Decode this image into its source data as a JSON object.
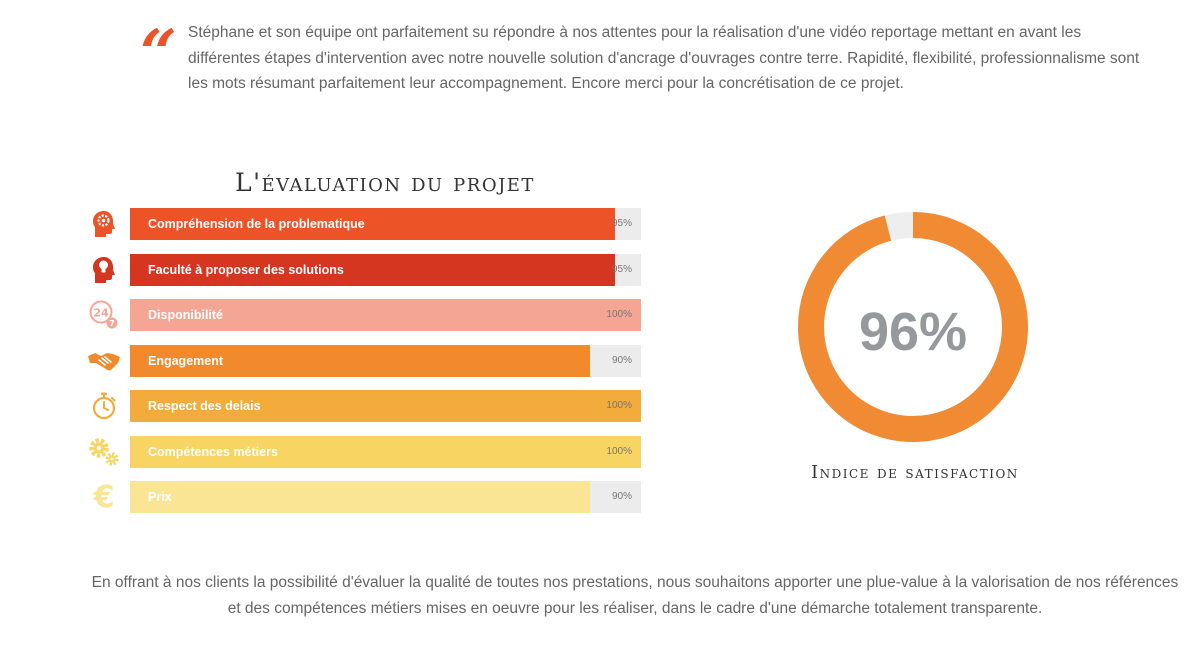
{
  "testimonial": {
    "quote_glyph": "\"",
    "text": "Stéphane et son équipe ont parfaitement su répondre à nos attentes pour la réalisation d'une vidéo reportage mettant en avant les différentes étapes d'intervention avec notre nouvelle solution d'ancrage d'ouvrages contre terre. Rapidité, flexibilité, professionnalisme sont les mots résumant parfaitement leur accompagnement. Encore merci pour la concrétisation de ce projet."
  },
  "chart_data": [
    {
      "type": "bar",
      "orientation": "horizontal",
      "title": "L'évaluation du projet",
      "xlim": [
        0,
        100
      ],
      "grid": false,
      "categories": [
        "Compréhension de la problematique",
        "Faculté à proposer des solutions",
        "Disponibilité",
        "Engagement",
        "Respect des delais",
        "Compétences métiers",
        "Prix"
      ],
      "values": [
        95,
        95,
        100,
        90,
        100,
        100,
        90
      ],
      "value_labels": [
        "95%",
        "95%",
        "100%",
        "90%",
        "100%",
        "100%",
        "90%"
      ],
      "colors": [
        "#ec5327",
        "#d4361f",
        "#f5a594",
        "#f08a2c",
        "#f3ab3b",
        "#f8d562",
        "#fae594"
      ],
      "icons": [
        "head-gear-icon",
        "head-lightbulb-icon",
        "clock-24-7-icon",
        "handshake-icon",
        "stopwatch-icon",
        "gears-icon",
        "euro-icon"
      ]
    },
    {
      "type": "pie",
      "variant": "donut",
      "value": 96,
      "value_label": "96%",
      "caption": "Indice de satisfaction",
      "color": "#f08a33",
      "track_color": "#eeeeee"
    }
  ],
  "footer": {
    "text": "En offrant à nos clients la possibilité d'évaluer la qualité de toutes nos prestations, nous souhaitons apporter une plue-value à la valorisation de nos références et des compétences métiers mises en oeuvre pour les réaliser, dans le cadre d'une démarche totalement transparente."
  }
}
